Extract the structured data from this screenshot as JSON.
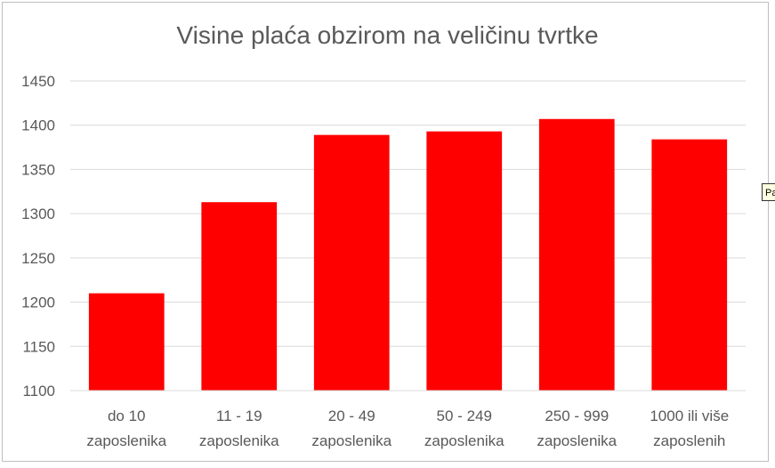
{
  "chart_data": {
    "type": "bar",
    "title": "Visine plaća obzirom na veličinu tvrtke",
    "categories": [
      [
        "do 10",
        "zaposlenika"
      ],
      [
        "11 - 19",
        "zaposlenika"
      ],
      [
        "20 - 49",
        "zaposlenika"
      ],
      [
        "50 - 249",
        "zaposlenika"
      ],
      [
        "250 - 999",
        "zaposlenika"
      ],
      [
        "1000 ili više",
        "zaposlenih"
      ]
    ],
    "values": [
      1210,
      1313,
      1389,
      1393,
      1407,
      1384
    ],
    "ylim": [
      1100,
      1450
    ],
    "yticks": [
      1100,
      1150,
      1200,
      1250,
      1300,
      1350,
      1400,
      1450
    ],
    "xlabel": "",
    "ylabel": "",
    "grid": true,
    "bar_color": "#ff0000"
  },
  "tooltip": {
    "text": "Pa"
  }
}
